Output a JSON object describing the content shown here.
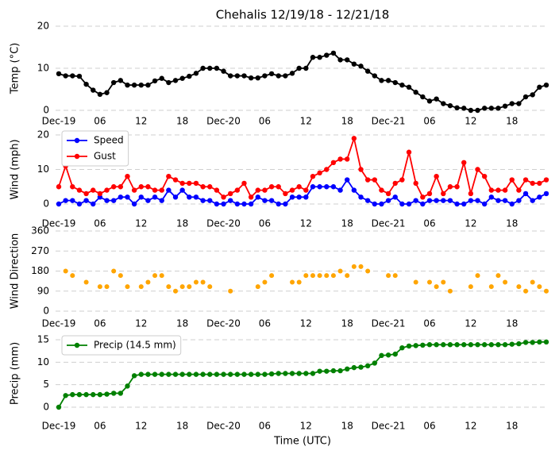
{
  "chart_data": [
    {
      "type": "line",
      "title": "Chehalis 12/19/18 - 12/21/18",
      "y_label": "Temp (°C)",
      "x": [
        0,
        1,
        2,
        3,
        4,
        5,
        6,
        7,
        8,
        9,
        10,
        11,
        12,
        13,
        14,
        15,
        16,
        17,
        18,
        19,
        20,
        21,
        22,
        23,
        24,
        25,
        26,
        27,
        28,
        29,
        30,
        31,
        32,
        33,
        34,
        35,
        36,
        37,
        38,
        39,
        40,
        41,
        42,
        43,
        44,
        45,
        46,
        47,
        48,
        49,
        50,
        51,
        52,
        53,
        54,
        55,
        56,
        57,
        58,
        59,
        60,
        61,
        62,
        63,
        64,
        65,
        66,
        67,
        68,
        69,
        70,
        71
      ],
      "xlim": [
        0,
        71
      ],
      "xticks": [
        {
          "value": 0,
          "label": "Dec-19"
        },
        {
          "value": 6,
          "label": "06"
        },
        12,
        18,
        {
          "value": 24,
          "label": "Dec-20"
        },
        {
          "value": 30,
          "label": "06"
        },
        {
          "value": 36,
          "label": "12"
        },
        {
          "value": 42,
          "label": "18"
        },
        {
          "value": 48,
          "label": "Dec-21"
        },
        {
          "value": 54,
          "label": "06"
        },
        {
          "value": 60,
          "label": "12"
        },
        {
          "value": 66,
          "label": "18"
        }
      ],
      "ylim": [
        0,
        20
      ],
      "yticks": [
        0,
        10,
        20
      ],
      "grid": true,
      "series": [
        {
          "name": null,
          "color": "#000000",
          "values": [
            8.7,
            8.2,
            8.2,
            8.1,
            6.2,
            4.8,
            3.8,
            4.2,
            6.6,
            7.1,
            6,
            6,
            6,
            6,
            7,
            7.6,
            6.6,
            7.1,
            7.6,
            8.1,
            8.8,
            10,
            10,
            10,
            9.3,
            8.2,
            8.2,
            8.2,
            7.7,
            7.7,
            8.2,
            8.7,
            8.2,
            8.2,
            8.8,
            10,
            10,
            12.6,
            12.6,
            13.1,
            13.6,
            12,
            12,
            11,
            10.5,
            9.3,
            8.2,
            7.1,
            7.1,
            6.6,
            6,
            5.5,
            4.3,
            3.2,
            2.2,
            2.7,
            1.6,
            1.1,
            0.6,
            0.5,
            0,
            0,
            0.5,
            0.5,
            0.5,
            1,
            1.6,
            1.6,
            3.2,
            3.7,
            5.5,
            6
          ]
        }
      ]
    },
    {
      "type": "line",
      "y_label": "Wind (mph)",
      "legend": "upper left",
      "x": [
        0,
        1,
        2,
        3,
        4,
        5,
        6,
        7,
        8,
        9,
        10,
        11,
        12,
        13,
        14,
        15,
        16,
        17,
        18,
        19,
        20,
        21,
        22,
        23,
        24,
        25,
        26,
        27,
        28,
        29,
        30,
        31,
        32,
        33,
        34,
        35,
        36,
        37,
        38,
        39,
        40,
        41,
        42,
        43,
        44,
        45,
        46,
        47,
        48,
        49,
        50,
        51,
        52,
        53,
        54,
        55,
        56,
        57,
        58,
        59,
        60,
        61,
        62,
        63,
        64,
        65,
        66,
        67,
        68,
        69,
        70,
        71
      ],
      "xlim": [
        0,
        71
      ],
      "xticks": [
        {
          "value": 0,
          "label": "Dec-19"
        },
        {
          "value": 6,
          "label": "06"
        },
        12,
        18,
        {
          "value": 24,
          "label": "Dec-20"
        },
        {
          "value": 30,
          "label": "06"
        },
        {
          "value": 36,
          "label": "12"
        },
        {
          "value": 42,
          "label": "18"
        },
        {
          "value": 48,
          "label": "Dec-21"
        },
        {
          "value": 54,
          "label": "06"
        },
        {
          "value": 60,
          "label": "12"
        },
        {
          "value": 66,
          "label": "18"
        }
      ],
      "ylim": [
        0,
        20
      ],
      "yticks": [
        0,
        10,
        20
      ],
      "grid": true,
      "series": [
        {
          "name": "Speed",
          "color": "#0000ff",
          "values": [
            0,
            1,
            1,
            0,
            1,
            0,
            2,
            1,
            1,
            2,
            2,
            0,
            2,
            1,
            2,
            1,
            4,
            2,
            4,
            2,
            2,
            1,
            1,
            0,
            0,
            1,
            0,
            0,
            0,
            2,
            1,
            1,
            0,
            0,
            2,
            2,
            2,
            5,
            5,
            5,
            5,
            4,
            7,
            4,
            2,
            1,
            0,
            0,
            1,
            2,
            0,
            0,
            1,
            0,
            1,
            1,
            1,
            1,
            0,
            0,
            1,
            1,
            0,
            2,
            1,
            1,
            0,
            1,
            3,
            1,
            2,
            3
          ]
        },
        {
          "name": "Gust",
          "color": "#ff0000",
          "values": [
            5,
            11,
            5,
            4,
            3,
            4,
            3,
            4,
            5,
            5,
            8,
            4,
            5,
            5,
            4,
            4,
            8,
            7,
            6,
            6,
            6,
            5,
            5,
            4,
            2,
            3,
            4,
            6,
            2,
            4,
            4,
            5,
            5,
            3,
            4,
            5,
            4,
            8,
            9,
            10,
            12,
            13,
            13,
            19,
            10,
            7,
            7,
            4,
            3,
            6,
            7,
            15,
            6,
            2,
            3,
            8,
            3,
            5,
            5,
            12,
            3,
            10,
            8,
            4,
            4,
            4,
            7,
            4,
            7,
            6,
            6,
            7
          ]
        }
      ]
    },
    {
      "type": "scatter",
      "y_label": "Wind Direction",
      "x": [
        0,
        1,
        2,
        3,
        4,
        5,
        6,
        7,
        8,
        9,
        10,
        11,
        12,
        13,
        14,
        15,
        16,
        17,
        18,
        19,
        20,
        21,
        22,
        23,
        24,
        25,
        26,
        27,
        28,
        29,
        30,
        31,
        32,
        33,
        34,
        35,
        36,
        37,
        38,
        39,
        40,
        41,
        42,
        43,
        44,
        45,
        46,
        47,
        48,
        49,
        50,
        51,
        52,
        53,
        54,
        55,
        56,
        57,
        58,
        59,
        60,
        61,
        62,
        63,
        64,
        65,
        66,
        67,
        68,
        69,
        70,
        71
      ],
      "xlim": [
        0,
        71
      ],
      "xticks": [
        {
          "value": 0,
          "label": "Dec-19"
        },
        {
          "value": 6,
          "label": "06"
        },
        12,
        18,
        {
          "value": 24,
          "label": "Dec-20"
        },
        {
          "value": 30,
          "label": "06"
        },
        {
          "value": 36,
          "label": "12"
        },
        {
          "value": 42,
          "label": "18"
        },
        {
          "value": 48,
          "label": "Dec-21"
        },
        {
          "value": 54,
          "label": "06"
        },
        {
          "value": 60,
          "label": "12"
        },
        {
          "value": 66,
          "label": "18"
        }
      ],
      "ylim": [
        0,
        360
      ],
      "yticks": [
        0,
        90,
        180,
        270,
        360
      ],
      "grid": true,
      "series": [
        {
          "name": null,
          "color": "#ffa500",
          "values": [
            null,
            180,
            160,
            null,
            130,
            null,
            110,
            110,
            180,
            160,
            110,
            null,
            110,
            130,
            160,
            160,
            110,
            90,
            110,
            110,
            130,
            130,
            110,
            null,
            null,
            90,
            null,
            null,
            null,
            110,
            130,
            160,
            null,
            null,
            130,
            130,
            160,
            160,
            160,
            160,
            160,
            180,
            160,
            200,
            200,
            180,
            null,
            null,
            160,
            160,
            null,
            null,
            130,
            null,
            130,
            110,
            130,
            90,
            null,
            null,
            110,
            160,
            null,
            110,
            160,
            130,
            null,
            110,
            90,
            130,
            110,
            90
          ]
        }
      ]
    },
    {
      "type": "line",
      "y_label": "Precip (mm)",
      "x_label": "Time (UTC)",
      "legend": "upper left",
      "x": [
        0,
        1,
        2,
        3,
        4,
        5,
        6,
        7,
        8,
        9,
        10,
        11,
        12,
        13,
        14,
        15,
        16,
        17,
        18,
        19,
        20,
        21,
        22,
        23,
        24,
        25,
        26,
        27,
        28,
        29,
        30,
        31,
        32,
        33,
        34,
        35,
        36,
        37,
        38,
        39,
        40,
        41,
        42,
        43,
        44,
        45,
        46,
        47,
        48,
        49,
        50,
        51,
        52,
        53,
        54,
        55,
        56,
        57,
        58,
        59,
        60,
        61,
        62,
        63,
        64,
        65,
        66,
        67,
        68,
        69,
        70,
        71
      ],
      "xlim": [
        0,
        71
      ],
      "xticks": [
        {
          "value": 0,
          "label": "Dec-19"
        },
        {
          "value": 6,
          "label": "06"
        },
        12,
        18,
        {
          "value": 24,
          "label": "Dec-20"
        },
        {
          "value": 30,
          "label": "06"
        },
        {
          "value": 36,
          "label": "12"
        },
        {
          "value": 42,
          "label": "18"
        },
        {
          "value": 48,
          "label": "Dec-21"
        },
        {
          "value": 54,
          "label": "06"
        },
        {
          "value": 60,
          "label": "12"
        },
        {
          "value": 66,
          "label": "18"
        }
      ],
      "ylim": [
        0,
        15
      ],
      "yticks": [
        0,
        5,
        10,
        15
      ],
      "grid": true,
      "series": [
        {
          "name": "Precip (14.5 mm)",
          "color": "#008000",
          "values": [
            0,
            2.6,
            2.8,
            2.8,
            2.8,
            2.8,
            2.8,
            2.9,
            3.1,
            3.1,
            4.7,
            7,
            7.3,
            7.3,
            7.3,
            7.3,
            7.3,
            7.3,
            7.3,
            7.3,
            7.3,
            7.3,
            7.3,
            7.3,
            7.3,
            7.3,
            7.3,
            7.3,
            7.3,
            7.3,
            7.3,
            7.4,
            7.5,
            7.5,
            7.5,
            7.5,
            7.5,
            7.5,
            8,
            8,
            8.1,
            8.1,
            8.5,
            8.8,
            8.9,
            9.2,
            9.8,
            11.5,
            11.6,
            11.8,
            13.2,
            13.6,
            13.7,
            13.8,
            13.9,
            13.9,
            13.9,
            13.9,
            13.9,
            13.9,
            13.9,
            13.9,
            13.9,
            13.9,
            13.9,
            13.9,
            14,
            14.1,
            14.4,
            14.4,
            14.5,
            14.5
          ]
        }
      ]
    }
  ]
}
